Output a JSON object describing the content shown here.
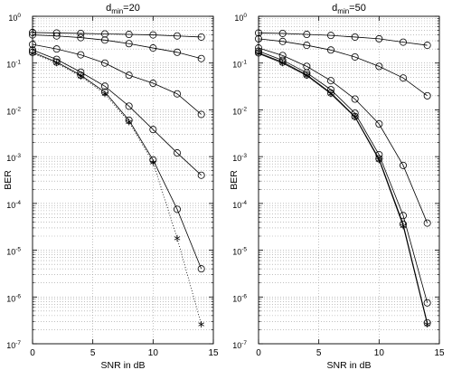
{
  "chart_data": [
    {
      "type": "line",
      "title_main": "d",
      "title_sub": "min",
      "title_tail": "=20",
      "xlabel": "SNR in dB",
      "ylabel": "BER",
      "yscale": "log",
      "xlim": [
        0,
        15
      ],
      "ylim": [
        1e-07,
        1
      ],
      "xticks": [
        "0",
        "5",
        "10",
        "15"
      ],
      "yticks": [
        {
          "exp": "-7"
        },
        {
          "exp": "-6"
        },
        {
          "exp": "-5"
        },
        {
          "exp": "-4"
        },
        {
          "exp": "-3"
        },
        {
          "exp": "-2"
        },
        {
          "exp": "-1"
        },
        {
          "exp": "0"
        }
      ],
      "tick_base": "10",
      "grid": true,
      "series": [
        {
          "x": [
            0,
            2,
            4,
            6,
            8,
            10,
            12,
            14
          ],
          "y": [
            0.45,
            0.44,
            0.43,
            0.42,
            0.41,
            0.4,
            0.38,
            0.36
          ],
          "marker": "circle",
          "style": "solid"
        },
        {
          "x": [
            0,
            2,
            4,
            6,
            8,
            10,
            12,
            14
          ],
          "y": [
            0.4,
            0.38,
            0.35,
            0.31,
            0.26,
            0.21,
            0.17,
            0.125
          ],
          "marker": "circle",
          "style": "solid"
        },
        {
          "x": [
            0,
            2,
            4,
            6,
            8,
            10,
            12,
            14
          ],
          "y": [
            0.25,
            0.2,
            0.15,
            0.1,
            0.055,
            0.037,
            0.022,
            0.008
          ],
          "marker": "circle",
          "style": "solid"
        },
        {
          "x": [
            0,
            2,
            4,
            6,
            8,
            10,
            12,
            14
          ],
          "y": [
            0.19,
            0.12,
            0.064,
            0.032,
            0.012,
            0.0038,
            0.0012,
            0.0004
          ],
          "marker": "circle",
          "style": "solid"
        },
        {
          "x": [
            0,
            2,
            4,
            6,
            8,
            10,
            12,
            14
          ],
          "y": [
            0.17,
            0.105,
            0.055,
            0.024,
            0.006,
            0.00085,
            7.5e-05,
            4e-06
          ],
          "marker": "circle",
          "style": "solid"
        },
        {
          "x": [
            0,
            2,
            4,
            6,
            8,
            10,
            12,
            14
          ],
          "y": [
            0.16,
            0.1,
            0.052,
            0.022,
            0.0055,
            0.00075,
            1.8e-05,
            2.6e-07
          ],
          "marker": "star",
          "style": "dotted"
        }
      ]
    },
    {
      "type": "line",
      "title_main": "d",
      "title_sub": "min",
      "title_tail": "=50",
      "xlabel": "SNR in dB",
      "ylabel": "BER",
      "yscale": "log",
      "xlim": [
        0,
        15
      ],
      "ylim": [
        1e-07,
        1
      ],
      "xticks": [
        "0",
        "5",
        "10",
        "15"
      ],
      "yticks": [
        {
          "exp": "-7"
        },
        {
          "exp": "-6"
        },
        {
          "exp": "-5"
        },
        {
          "exp": "-4"
        },
        {
          "exp": "-3"
        },
        {
          "exp": "-2"
        },
        {
          "exp": "-1"
        },
        {
          "exp": "0"
        }
      ],
      "tick_base": "10",
      "grid": true,
      "series": [
        {
          "x": [
            0,
            2,
            4,
            6,
            8,
            10,
            12,
            14
          ],
          "y": [
            0.44,
            0.43,
            0.41,
            0.39,
            0.36,
            0.33,
            0.28,
            0.24
          ],
          "marker": "circle",
          "style": "solid"
        },
        {
          "x": [
            0,
            2,
            4,
            6,
            8,
            10,
            12,
            14
          ],
          "y": [
            0.33,
            0.29,
            0.24,
            0.19,
            0.135,
            0.085,
            0.048,
            0.02
          ],
          "marker": "circle",
          "style": "solid"
        },
        {
          "x": [
            0,
            2,
            4,
            6,
            8,
            10,
            12,
            14
          ],
          "y": [
            0.21,
            0.145,
            0.085,
            0.042,
            0.017,
            0.005,
            0.00065,
            3.8e-05
          ],
          "marker": "circle",
          "style": "solid"
        },
        {
          "x": [
            0,
            2,
            4,
            6,
            8,
            10,
            12,
            14
          ],
          "y": [
            0.18,
            0.115,
            0.062,
            0.027,
            0.0085,
            0.0011,
            5.5e-05,
            7.5e-07
          ],
          "marker": "circle",
          "style": "solid"
        },
        {
          "x": [
            0,
            2,
            4,
            6,
            8,
            10,
            12,
            14
          ],
          "y": [
            0.165,
            0.105,
            0.056,
            0.023,
            0.0072,
            0.0009,
            3.6e-05,
            2.8e-07
          ],
          "marker": "circle",
          "style": "solid"
        },
        {
          "x": [
            0,
            2,
            4,
            6,
            8,
            10,
            12,
            14
          ],
          "y": [
            0.16,
            0.1,
            0.054,
            0.022,
            0.007,
            0.00085,
            3.3e-05,
            2.6e-07
          ],
          "marker": "star",
          "style": "solid"
        }
      ]
    }
  ]
}
